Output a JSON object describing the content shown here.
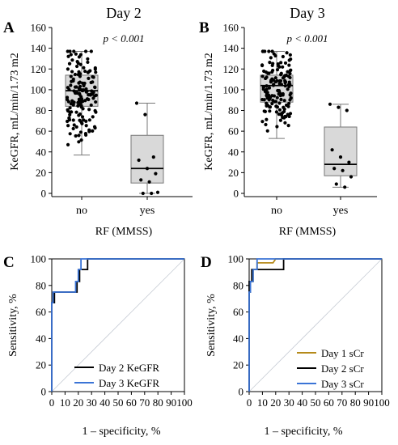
{
  "chart_data": [
    {
      "panel": "A",
      "type": "box",
      "title": "Day 2",
      "annotation": "p < 0.001",
      "xlabel": "RF (MMSS)",
      "ylabel": "KeGFR, mL/min/1.73 m2",
      "ylim": [
        0,
        160
      ],
      "yticks": [
        "0",
        "20",
        "40",
        "60",
        "80",
        "100",
        "120",
        "140",
        "160"
      ],
      "categories": [
        "no",
        "yes"
      ],
      "boxes": [
        {
          "category": "no",
          "whisker_low": 37,
          "q1": 84,
          "median": 99,
          "q3": 114,
          "whisker_high": 137
        },
        {
          "category": "yes",
          "whisker_low": 0,
          "q1": 10,
          "median": 24,
          "q3": 56,
          "whisker_high": 87
        }
      ],
      "yes_points": [
        87,
        76,
        35,
        32,
        24,
        19,
        13,
        11,
        1,
        0,
        0
      ]
    },
    {
      "panel": "B",
      "type": "box",
      "title": "Day 3",
      "annotation": "p < 0.001",
      "xlabel": "RF (MMSS)",
      "ylabel": "KeGFR, mL/min/1.73 m2",
      "ylim": [
        0,
        160
      ],
      "yticks": [
        "0",
        "20",
        "40",
        "60",
        "80",
        "100",
        "120",
        "140",
        "160"
      ],
      "categories": [
        "no",
        "yes"
      ],
      "boxes": [
        {
          "category": "no",
          "whisker_low": 53,
          "q1": 88,
          "median": 104,
          "q3": 114,
          "whisker_high": 137
        },
        {
          "category": "yes",
          "whisker_low": 6,
          "q1": 17,
          "median": 28,
          "q3": 64,
          "whisker_high": 86
        }
      ],
      "yes_points": [
        86,
        83,
        80,
        42,
        35,
        30,
        24,
        22,
        16,
        9,
        6
      ]
    },
    {
      "panel": "C",
      "type": "roc",
      "xlabel": "1 – specificity, %",
      "ylabel": "Sensitivity, %",
      "xlim": [
        0,
        100
      ],
      "ylim": [
        0,
        100
      ],
      "ticks": [
        "0",
        "10",
        "20",
        "30",
        "40",
        "50",
        "60",
        "70",
        "80",
        "90",
        "100"
      ],
      "series": [
        {
          "name": "Day 2 KeGFR",
          "color": "#000000",
          "x": [
            0,
            0,
            2,
            2,
            19,
            19,
            21,
            21,
            27,
            27,
            100
          ],
          "y": [
            0,
            67,
            67,
            75,
            75,
            83,
            83,
            92,
            92,
            100,
            100
          ]
        },
        {
          "name": "Day 3 KeGFR",
          "color": "#3b74d6",
          "x": [
            0,
            0,
            1,
            1,
            18,
            18,
            20,
            20,
            22,
            22,
            100
          ],
          "y": [
            0,
            67,
            67,
            75,
            75,
            83,
            83,
            92,
            92,
            100,
            100
          ]
        }
      ]
    },
    {
      "panel": "D",
      "type": "roc",
      "xlabel": "1 – specificity, %",
      "ylabel": "Sensitivity, %",
      "xlim": [
        0,
        100
      ],
      "ylim": [
        0,
        100
      ],
      "ticks": [
        "0",
        "10",
        "20",
        "30",
        "40",
        "50",
        "60",
        "70",
        "80",
        "90",
        "100"
      ],
      "series": [
        {
          "name": "Day 1 sCr",
          "color": "#b58a1a",
          "x": [
            0,
            0,
            1,
            1,
            3,
            3,
            6,
            6,
            18,
            20,
            100
          ],
          "y": [
            0,
            75,
            75,
            83,
            83,
            92,
            92,
            97,
            97,
            100,
            100
          ]
        },
        {
          "name": "Day 2 sCr",
          "color": "#000000",
          "x": [
            0,
            0,
            2,
            2,
            4,
            4,
            26,
            26,
            100
          ],
          "y": [
            0,
            83,
            83,
            92,
            92,
            92,
            92,
            100,
            100
          ]
        },
        {
          "name": "Day 3 sCr",
          "color": "#3b74d6",
          "x": [
            0,
            0,
            1,
            1,
            3,
            3,
            6,
            6,
            100
          ],
          "y": [
            0,
            75,
            75,
            83,
            83,
            92,
            92,
            100,
            100
          ]
        }
      ]
    }
  ]
}
